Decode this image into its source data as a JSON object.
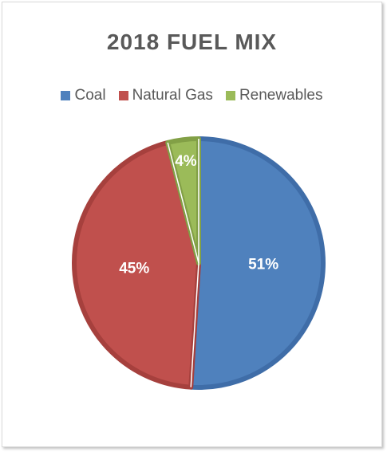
{
  "chart_data": {
    "type": "pie",
    "title": "2018 FUEL MIX",
    "legend_position": "top",
    "categories": [
      "Coal",
      "Natural Gas",
      "Renewables"
    ],
    "values": [
      51,
      45,
      4
    ],
    "data_labels": [
      "51%",
      "45%",
      "4%"
    ],
    "colors": [
      "#4f81bd",
      "#c0504d",
      "#9bbb59"
    ],
    "border_colors": [
      "#3f6da8",
      "#a6403d",
      "#82a046"
    ]
  }
}
